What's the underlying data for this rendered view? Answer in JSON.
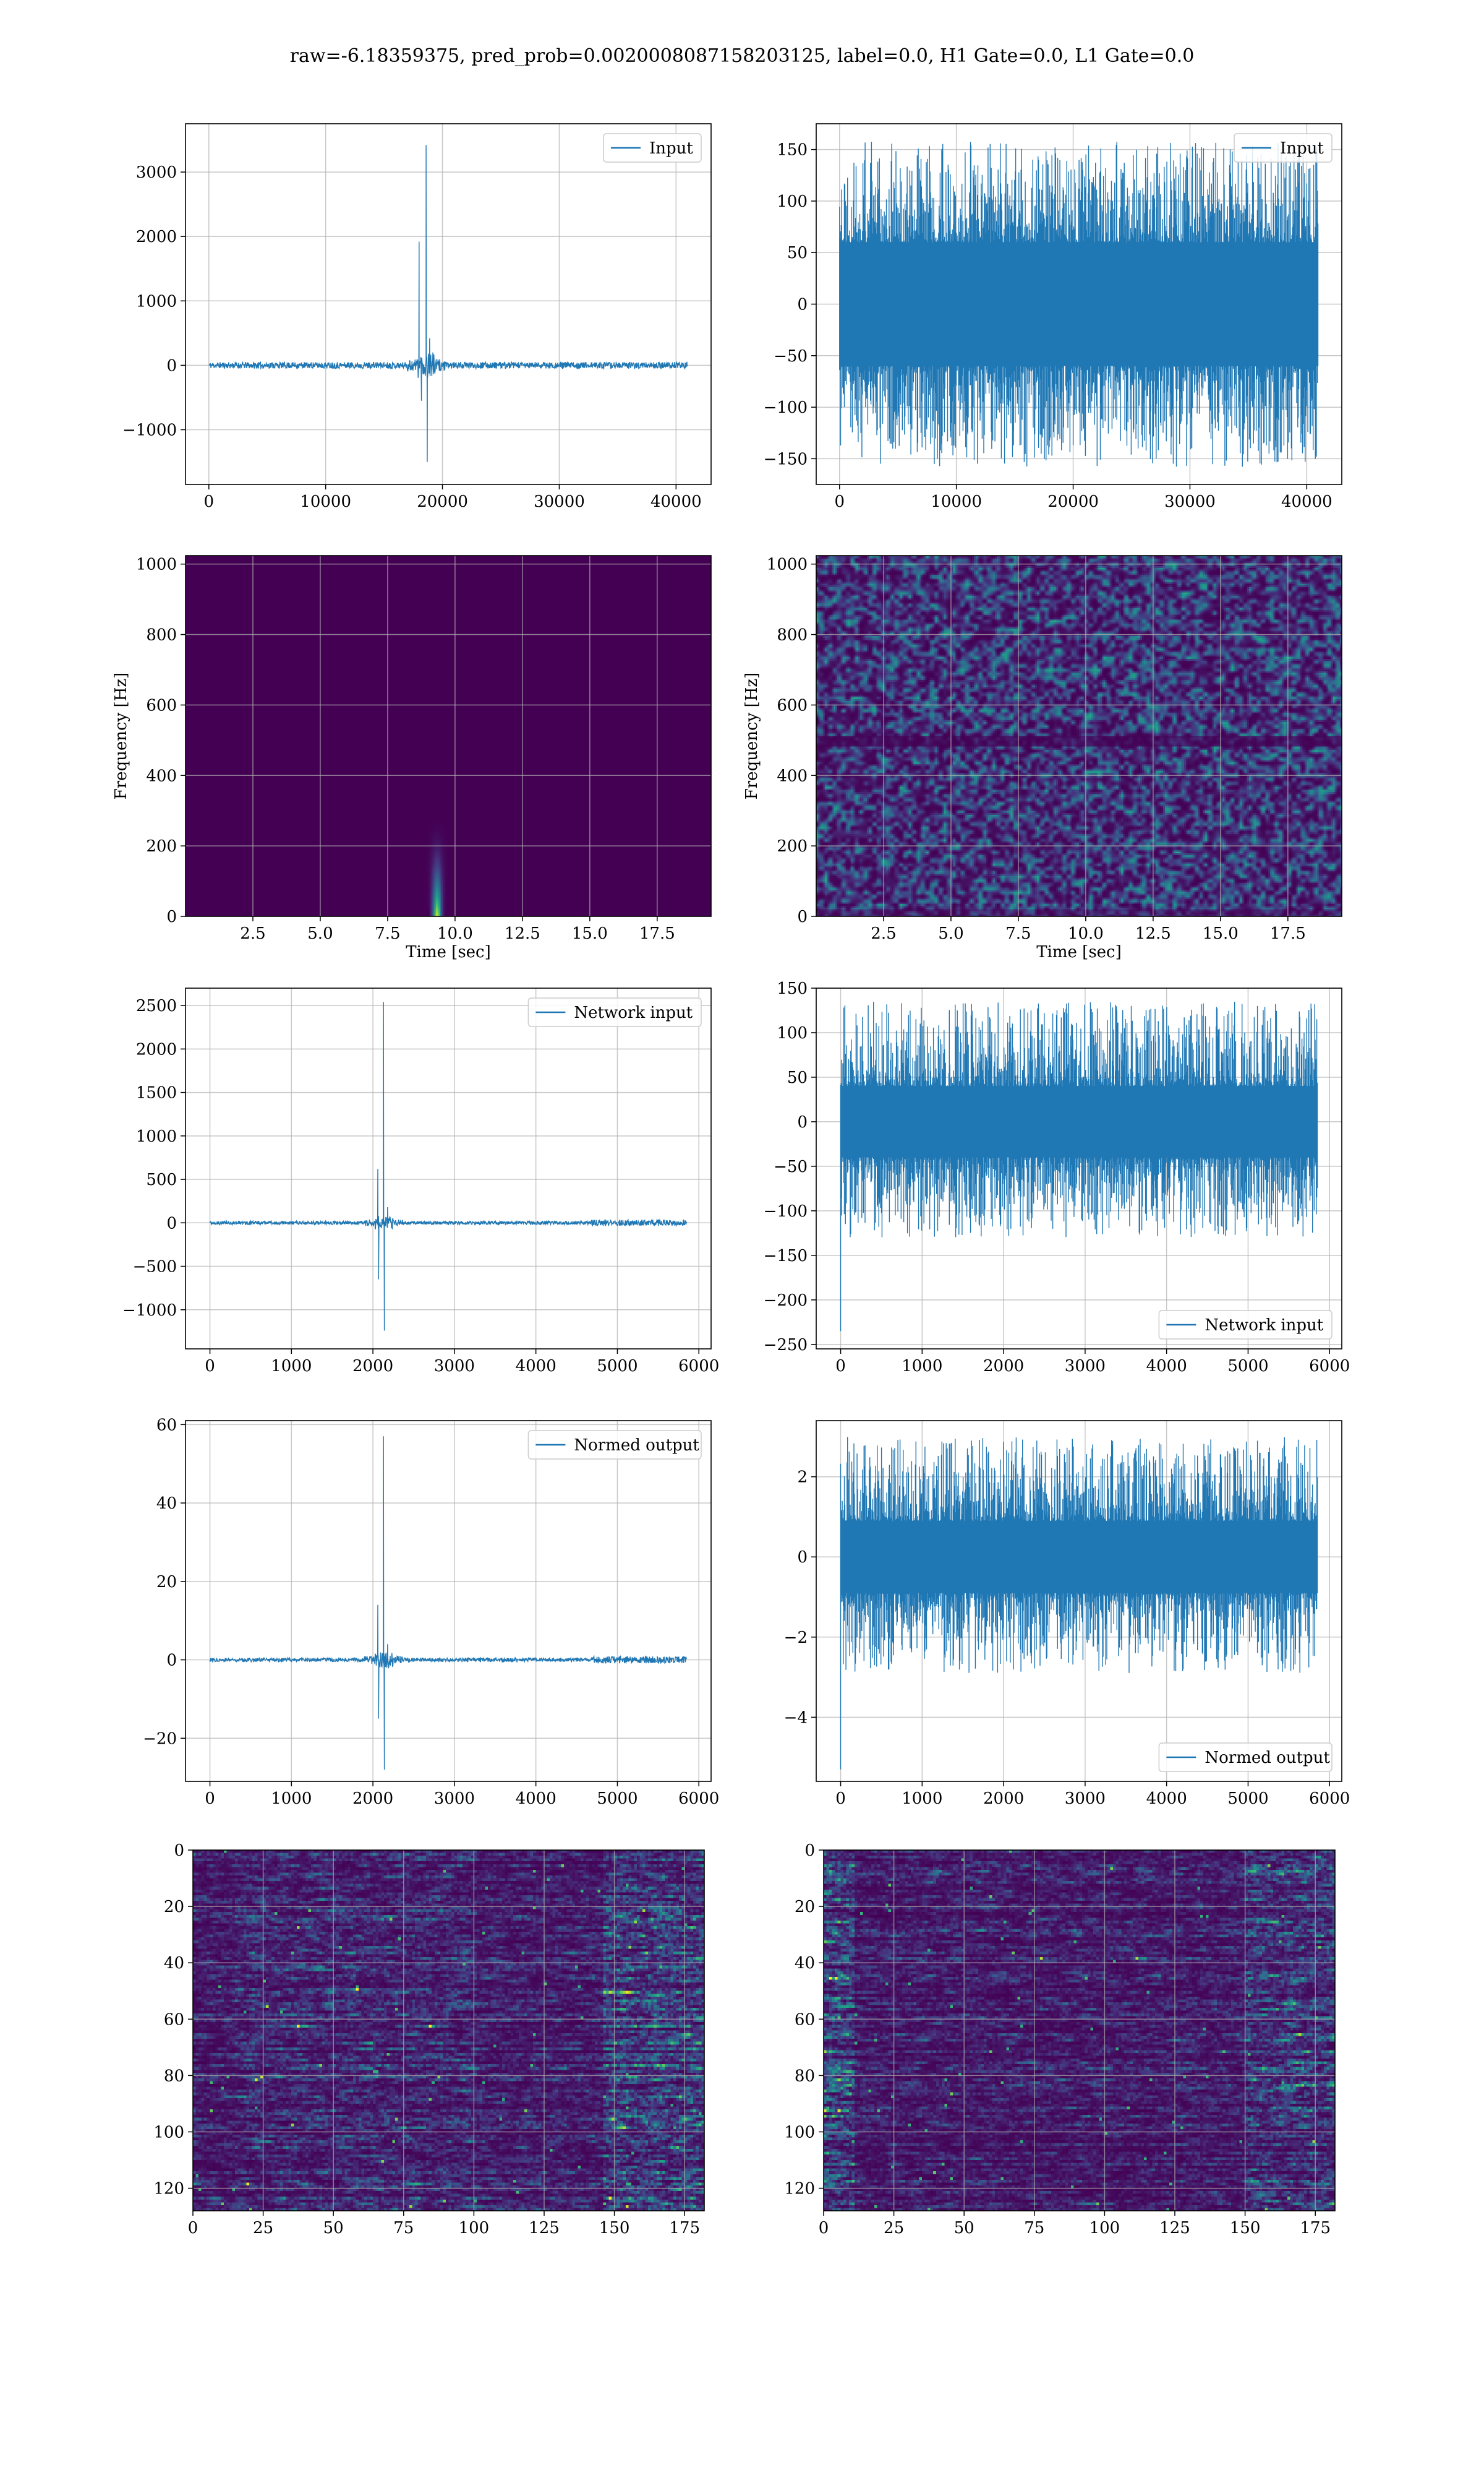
{
  "figure": {
    "suptitle": "raw=-6.18359375, pred_prob=0.0020008087158203125, label=0.0, H1 Gate=0.0, L1 Gate=0.0"
  },
  "colors": {
    "series": "#1f77b4",
    "grid": "#b0b0b0",
    "spec_bg": "#440154",
    "viridis": [
      "#440154",
      "#46327e",
      "#365c8d",
      "#277f8e",
      "#1fa187",
      "#4ac16d",
      "#a0da39",
      "#fde725"
    ]
  },
  "chart_data": [
    {
      "id": "input-h1",
      "type": "line",
      "legend": "Input",
      "legend_loc": "upper right",
      "xlim": [
        -2000,
        43000
      ],
      "ylim": [
        -1850,
        3750
      ],
      "xticks": [
        0,
        10000,
        20000,
        30000,
        40000
      ],
      "yticks": [
        -1000,
        0,
        1000,
        2000,
        3000
      ],
      "x_range": [
        0,
        40960
      ],
      "baseline_amplitude": 50,
      "features": [
        {
          "x": 18000,
          "y": 1920
        },
        {
          "x": 18200,
          "y": -550
        },
        {
          "x": 18600,
          "y": 3420
        },
        {
          "x": 18700,
          "y": -1500
        },
        {
          "x": 18900,
          "y": 420
        }
      ],
      "grid": true
    },
    {
      "id": "input-l1",
      "type": "line",
      "legend": "Input",
      "legend_loc": "upper right",
      "xlim": [
        -2000,
        43000
      ],
      "ylim": [
        -175,
        175
      ],
      "xticks": [
        0,
        10000,
        20000,
        30000,
        40000
      ],
      "yticks": [
        -150,
        -100,
        -50,
        0,
        50,
        100,
        150
      ],
      "x_range": [
        0,
        40960
      ],
      "band_min": -60,
      "band_max": 60,
      "spike_range": [
        -158,
        158
      ],
      "grid": true
    },
    {
      "id": "spec-h1",
      "type": "heatmap",
      "xlabel": "Time [sec]",
      "ylabel": "Frequency [Hz]",
      "xlim": [
        0,
        19.5
      ],
      "ylim": [
        0,
        1024
      ],
      "xticks": [
        2.5,
        5.0,
        7.5,
        10.0,
        12.5,
        15.0,
        17.5
      ],
      "xticklabels": [
        "2.5",
        "5.0",
        "7.5",
        "10.0",
        "12.5",
        "15.0",
        "17.5"
      ],
      "yticks": [
        0,
        200,
        400,
        600,
        800,
        1000
      ],
      "blip": {
        "time": 9.3,
        "freq_top": 300,
        "freq_bottom": 0
      },
      "grid": true
    },
    {
      "id": "spec-l1",
      "type": "heatmap",
      "xlabel": "Time [sec]",
      "ylabel": "Frequency [Hz]",
      "xlim": [
        0,
        19.5
      ],
      "ylim": [
        0,
        1024
      ],
      "xticks": [
        2.5,
        5.0,
        7.5,
        10.0,
        12.5,
        15.0,
        17.5
      ],
      "xticklabels": [
        "2.5",
        "5.0",
        "7.5",
        "10.0",
        "12.5",
        "15.0",
        "17.5"
      ],
      "yticks": [
        0,
        200,
        400,
        600,
        800,
        1000
      ],
      "dark_band_freq": 500,
      "grid": true
    },
    {
      "id": "netin-h1",
      "type": "line",
      "legend": "Network input",
      "legend_loc": "upper right",
      "xlim": [
        -300,
        6150
      ],
      "ylim": [
        -1450,
        2700
      ],
      "xticks": [
        0,
        1000,
        2000,
        3000,
        4000,
        5000,
        6000
      ],
      "yticks": [
        -1000,
        -500,
        0,
        500,
        1000,
        1500,
        2000,
        2500
      ],
      "x_range": [
        0,
        5850
      ],
      "baseline_amplitude": 20,
      "features": [
        {
          "x": 2060,
          "y": 620
        },
        {
          "x": 2070,
          "y": -650
        },
        {
          "x": 2130,
          "y": 2540
        },
        {
          "x": 2140,
          "y": -1240
        },
        {
          "x": 2180,
          "y": 180
        }
      ],
      "grid": true
    },
    {
      "id": "netin-l1",
      "type": "line",
      "legend": "Network input",
      "legend_loc": "lower right",
      "xlim": [
        -300,
        6150
      ],
      "ylim": [
        -255,
        150
      ],
      "xticks": [
        0,
        1000,
        2000,
        3000,
        4000,
        5000,
        6000
      ],
      "yticks": [
        -250,
        -200,
        -150,
        -100,
        -50,
        0,
        50,
        100,
        150
      ],
      "x_range": [
        0,
        5850
      ],
      "band_min": -40,
      "band_max": 40,
      "spike_range": [
        -130,
        135
      ],
      "start_spike": -235,
      "grid": true
    },
    {
      "id": "normed-h1",
      "type": "line",
      "legend": "Normed output",
      "legend_loc": "upper right",
      "xlim": [
        -300,
        6150
      ],
      "ylim": [
        -31,
        61
      ],
      "xticks": [
        0,
        1000,
        2000,
        3000,
        4000,
        5000,
        6000
      ],
      "yticks": [
        -20,
        0,
        20,
        40,
        60
      ],
      "x_range": [
        0,
        5850
      ],
      "baseline_amplitude": 0.5,
      "features": [
        {
          "x": 2060,
          "y": 14
        },
        {
          "x": 2070,
          "y": -15
        },
        {
          "x": 2130,
          "y": 57
        },
        {
          "x": 2140,
          "y": -28
        },
        {
          "x": 2180,
          "y": 4
        }
      ],
      "grid": true
    },
    {
      "id": "normed-l1",
      "type": "line",
      "legend": "Normed output",
      "legend_loc": "lower right",
      "xlim": [
        -300,
        6150
      ],
      "ylim": [
        -5.6,
        3.4
      ],
      "xticks": [
        0,
        1000,
        2000,
        3000,
        4000,
        5000,
        6000
      ],
      "yticks": [
        -4,
        -2,
        0,
        2
      ],
      "x_range": [
        0,
        5850
      ],
      "band_min": -0.9,
      "band_max": 0.9,
      "spike_range": [
        -2.9,
        3.0
      ],
      "start_spike": -5.3,
      "grid": true
    },
    {
      "id": "feat-h1",
      "type": "heatmap",
      "xlim": [
        0,
        182
      ],
      "ylim": [
        128,
        0
      ],
      "xticks": [
        0,
        25,
        50,
        75,
        100,
        125,
        150,
        175
      ],
      "yticks": [
        0,
        20,
        40,
        60,
        80,
        100,
        120
      ],
      "rows": 128,
      "cols": 182,
      "grid": true
    },
    {
      "id": "feat-l1",
      "type": "heatmap",
      "xlim": [
        0,
        182
      ],
      "ylim": [
        128,
        0
      ],
      "xticks": [
        0,
        25,
        50,
        75,
        100,
        125,
        150,
        175
      ],
      "yticks": [
        0,
        20,
        40,
        60,
        80,
        100,
        120
      ],
      "rows": 128,
      "cols": 182,
      "grid": true
    }
  ]
}
